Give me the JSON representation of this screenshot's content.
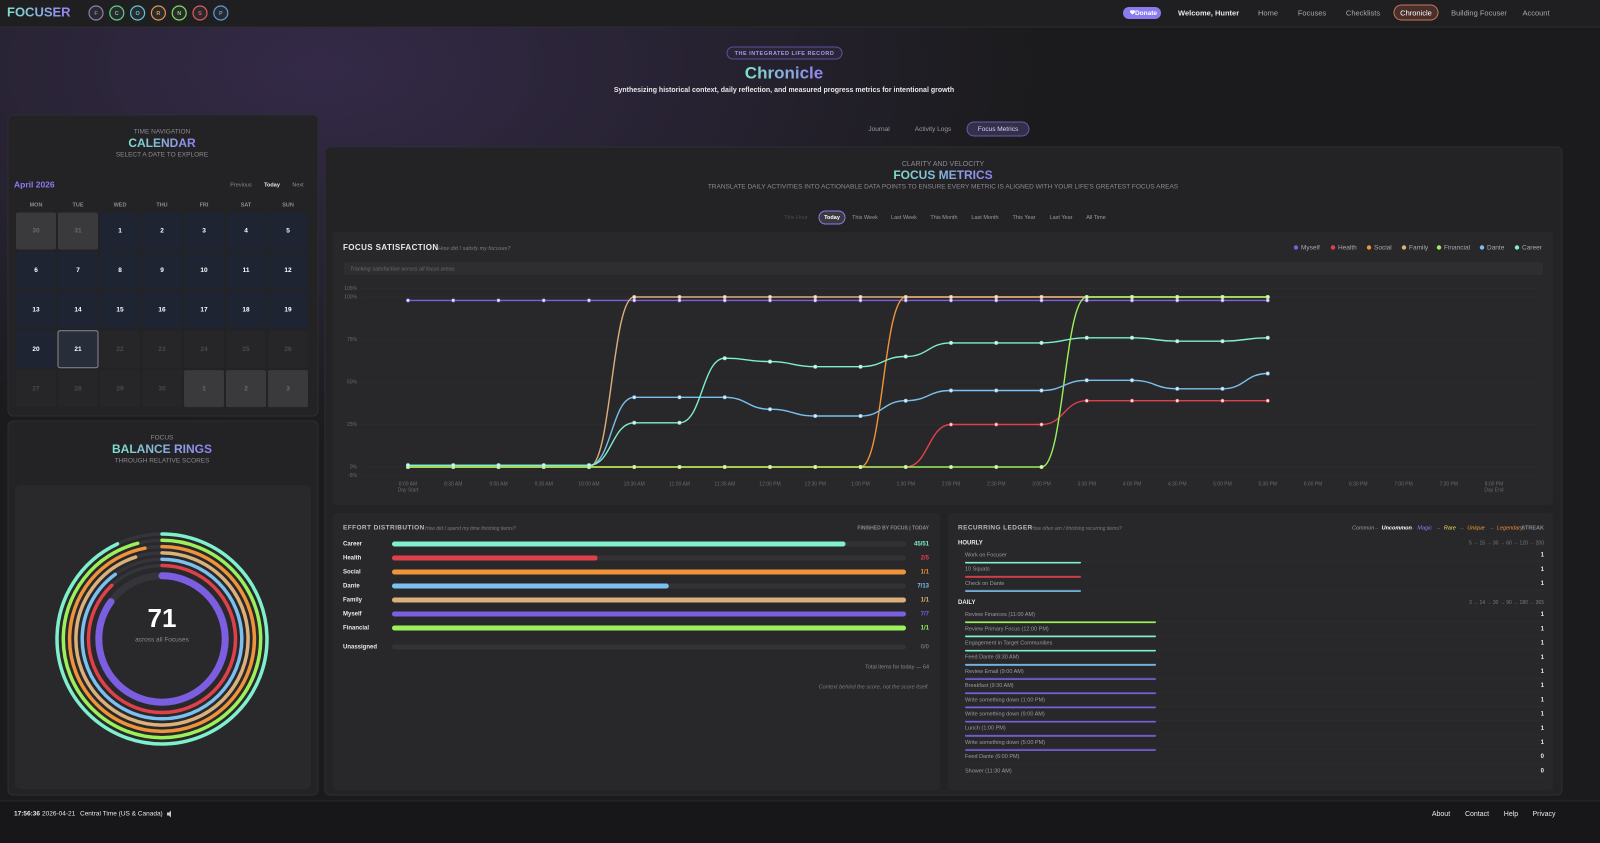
{
  "nav": {
    "brand": "FOCUSER",
    "badges": [
      {
        "letter": "F",
        "color": "#8a7fb0"
      },
      {
        "letter": "C",
        "color": "#5fd08a"
      },
      {
        "letter": "O",
        "color": "#5fc8d8"
      },
      {
        "letter": "R",
        "color": "#e0964a"
      },
      {
        "letter": "N",
        "color": "#7ee05a"
      },
      {
        "letter": "S",
        "color": "#e05a5a"
      },
      {
        "letter": "P",
        "color": "#5a9ae0"
      }
    ],
    "donate": "Donate",
    "welcome": "Welcome, Hunter",
    "links": [
      {
        "label": "Home"
      },
      {
        "label": "Focuses"
      },
      {
        "label": "Checklists"
      },
      {
        "label": "Chronicle",
        "active": true
      },
      {
        "label": "Building Focuser"
      },
      {
        "label": "Account"
      }
    ]
  },
  "hero": {
    "badge": "THE INTEGRATED LIFE RECORD",
    "title": "Chronicle",
    "subtitle": "Synthesizing historical context, daily reflection, and measured progress metrics for intentional growth"
  },
  "tabs": [
    {
      "label": "Journal"
    },
    {
      "label": "Activity Logs"
    },
    {
      "label": "Focus Metrics",
      "active": true
    }
  ],
  "calendar": {
    "kicker": "TIME NAVIGATION",
    "title": "CALENDAR",
    "subtitle": "SELECT A DATE TO EXPLORE",
    "month": "April 2026",
    "previous": "Previous",
    "today": "Today",
    "next": "Next",
    "weekdays": [
      "MON",
      "TUE",
      "WED",
      "THU",
      "FRI",
      "SAT",
      "SUN"
    ],
    "weeks": [
      [
        30,
        31,
        1,
        2,
        3,
        4,
        5
      ],
      [
        6,
        7,
        8,
        9,
        10,
        11,
        12
      ],
      [
        13,
        14,
        15,
        16,
        17,
        18,
        19
      ],
      [
        20,
        21,
        22,
        23,
        24,
        25,
        26
      ],
      [
        27,
        28,
        29,
        30,
        1,
        2,
        3
      ]
    ]
  },
  "rings": {
    "kicker": "FOCUS",
    "title": "BALANCE RINGS",
    "subtitle": "THROUGH RELATIVE SCORES",
    "score": 71,
    "score_label": "across all Focuses",
    "rings": [
      {
        "color": "#7ef0cc",
        "value": 93
      },
      {
        "color": "#9cf05a",
        "value": 96
      },
      {
        "color": "#f0943a",
        "value": 97
      },
      {
        "color": "#dcb07a",
        "value": 95
      },
      {
        "color": "#7cc0f0",
        "value": 90
      },
      {
        "color": "#e0404a",
        "value": 88
      },
      {
        "color": "#7b5fe0",
        "value": 85
      }
    ]
  },
  "metrics": {
    "kicker": "CLARITY AND VELOCITY",
    "title": "FOCUS METRICS",
    "subtitle": "TRANSLATE DAILY ACTIVITIES INTO ACTIONABLE DATA POINTS TO ENSURE EVERY METRIC IS ALIGNED WITH YOUR LIFE'S GREATEST FOCUS AREAS",
    "ranges": [
      {
        "label": "This Hour",
        "disabled": true
      },
      {
        "label": "Today",
        "active": true
      },
      {
        "label": "This Week"
      },
      {
        "label": "Last Week"
      },
      {
        "label": "This Month"
      },
      {
        "label": "Last Month"
      },
      {
        "label": "This Year"
      },
      {
        "label": "Last Year"
      },
      {
        "label": "All Time"
      }
    ]
  },
  "focus_satisfaction": {
    "type": "line",
    "title": "FOCUS SATISFACTION",
    "question": "How did I satisfy my focuses?",
    "hint": "Tracking satisfaction across all focus areas",
    "categories": [
      "8:00 AM",
      "8:30 AM",
      "9:00 AM",
      "9:30 AM",
      "10:00 AM",
      "10:30 AM",
      "11:00 AM",
      "11:30 AM",
      "12:00 PM",
      "12:30 PM",
      "1:00 PM",
      "1:30 PM",
      "2:00 PM",
      "2:30 PM",
      "3:00 PM",
      "3:30 PM",
      "4:00 PM",
      "4:30 PM",
      "5:00 PM",
      "5:30 PM",
      "6:00 PM",
      "6:30 PM",
      "7:00 PM",
      "7:30 PM",
      "8:00 PM"
    ],
    "start_note": "Day Start",
    "end_note": "Day End",
    "ylim": [
      -5,
      105
    ],
    "yticks": [
      {
        "value": -5,
        "label": "-5%"
      },
      {
        "value": 0,
        "label": "0%"
      },
      {
        "value": 25,
        "label": "25%"
      },
      {
        "value": 50,
        "label": "50%"
      },
      {
        "value": 75,
        "label": "75%"
      },
      {
        "value": 100,
        "label": "100%"
      },
      {
        "value": 105,
        "label": "105%"
      }
    ],
    "legend": "top-right",
    "series": [
      {
        "name": "Myself",
        "color": "#7b5fe0",
        "values": [
          98,
          98,
          98,
          98,
          98,
          98,
          98,
          98,
          98,
          98,
          98,
          98,
          98,
          98,
          98,
          98,
          98,
          98,
          98,
          98,
          null,
          null,
          null,
          null,
          null
        ]
      },
      {
        "name": "Health",
        "color": "#e0404a",
        "values": [
          0,
          0,
          0,
          0,
          0,
          0,
          0,
          0,
          0,
          0,
          0,
          0,
          25,
          25,
          25,
          39,
          39,
          39,
          39,
          39,
          null,
          null,
          null,
          null,
          null
        ]
      },
      {
        "name": "Social",
        "color": "#f0943a",
        "values": [
          0,
          0,
          0,
          0,
          0,
          0,
          0,
          0,
          0,
          0,
          0,
          100,
          100,
          100,
          100,
          100,
          100,
          100,
          100,
          100,
          null,
          null,
          null,
          null,
          null
        ]
      },
      {
        "name": "Family",
        "color": "#dcb07a",
        "values": [
          0,
          0,
          0,
          0,
          0,
          100,
          100,
          100,
          100,
          100,
          100,
          100,
          100,
          100,
          100,
          100,
          100,
          100,
          100,
          100,
          null,
          null,
          null,
          null,
          null
        ]
      },
      {
        "name": "Financial",
        "color": "#9cf05a",
        "values": [
          0,
          0,
          0,
          0,
          0,
          0,
          0,
          0,
          0,
          0,
          0,
          0,
          0,
          0,
          0,
          100,
          100,
          100,
          100,
          100,
          null,
          null,
          null,
          null,
          null
        ]
      },
      {
        "name": "Dante",
        "color": "#7cc0f0",
        "values": [
          1,
          1,
          1,
          1,
          1,
          41,
          41,
          41,
          34,
          30,
          30,
          39,
          45,
          45,
          45,
          51,
          51,
          46,
          46,
          55,
          null,
          null,
          null,
          null,
          null
        ]
      },
      {
        "name": "Career",
        "color": "#7ef0cc",
        "values": [
          1,
          1,
          1,
          1,
          1,
          26,
          26,
          64,
          62,
          59,
          59,
          65,
          73,
          73,
          73,
          76,
          76,
          74,
          74,
          76,
          null,
          null,
          null,
          null,
          null
        ]
      }
    ]
  },
  "effort": {
    "title": "EFFORT DISTRIBUTION",
    "question": "How did I spend my time finishing items?",
    "right": "FINISHED BY FOCUS | TODAY",
    "rows": [
      {
        "name": "Career",
        "color": "#7ef0cc",
        "done": 45,
        "total": 51,
        "label": "45/51"
      },
      {
        "name": "Health",
        "color": "#e0404a",
        "done": 2,
        "total": 5,
        "label": "2/5"
      },
      {
        "name": "Social",
        "color": "#f0943a",
        "done": 1,
        "total": 1,
        "label": "1/1"
      },
      {
        "name": "Dante",
        "color": "#7cc0f0",
        "done": 7,
        "total": 13,
        "label": "7/13"
      },
      {
        "name": "Family",
        "color": "#dcb07a",
        "done": 1,
        "total": 1,
        "label": "1/1"
      },
      {
        "name": "Myself",
        "color": "#7b5fe0",
        "done": 7,
        "total": 7,
        "label": "7/7"
      },
      {
        "name": "Financial",
        "color": "#9cf05a",
        "done": 1,
        "total": 1,
        "label": "1/1"
      }
    ],
    "unassigned": {
      "name": "Unassigned",
      "done": 0,
      "total": 0,
      "label": "0/0"
    },
    "total": "Total items for today — 64",
    "note": "Context behind the score, not the score itself."
  },
  "ledger": {
    "title": "RECURRING LEDGER",
    "question": "How often am I finishing recurring items?",
    "tiers": [
      {
        "name": "Common",
        "color": "#9a9a9a"
      },
      {
        "name": "Uncommon",
        "color": "#ffffff"
      },
      {
        "name": "Magic",
        "color": "#8a7cff"
      },
      {
        "name": "Rare",
        "color": "#f0e05a"
      },
      {
        "name": "Unique",
        "color": "#f0a03a"
      },
      {
        "name": "Legendary",
        "color": "#f08a2a"
      }
    ],
    "separator": "→",
    "streak": "STREAK",
    "groups": [
      {
        "name": "HOURLY",
        "thresholds": "5 → 15 → 30 → 60 → 120 → 200",
        "items": [
          {
            "name": "Work on Focuser",
            "color": "#7ef0cc",
            "streak": 1
          },
          {
            "name": "10 Squats",
            "color": "#e0404a",
            "streak": 1
          },
          {
            "name": "Check on Dante",
            "color": "#7cc0f0",
            "streak": 1
          }
        ]
      },
      {
        "name": "DAILY",
        "thresholds": "3 → 14 → 30 → 90 → 180 → 365",
        "items": [
          {
            "name": "Review Finances (11:00 AM)",
            "color": "#9cf05a",
            "streak": 1
          },
          {
            "name": "Review Primary Focus (12:00 PM)",
            "color": "#7ef0cc",
            "streak": 1
          },
          {
            "name": "Engagement in Target Communities",
            "color": "#7ef0cc",
            "streak": 1
          },
          {
            "name": "Feed Dante (8:30 AM)",
            "color": "#7cc0f0",
            "streak": 1
          },
          {
            "name": "Review Email (9:00 AM)",
            "color": "#7b5fe0",
            "streak": 1
          },
          {
            "name": "Breakfast (9:30 AM)",
            "color": "#7b5fe0",
            "streak": 1
          },
          {
            "name": "Write something down (1:00 PM)",
            "color": "#7b5fe0",
            "streak": 1
          },
          {
            "name": "Write something down (9:00 AM)",
            "color": "#7b5fe0",
            "streak": 1
          },
          {
            "name": "Lunch (1:00 PM)",
            "color": "#7b5fe0",
            "streak": 1
          },
          {
            "name": "Write something down (5:00 PM)",
            "color": "#7b5fe0",
            "streak": 1
          },
          {
            "name": "Feed Dante (6:00 PM)",
            "streak": 0
          },
          {
            "name": "Shower (11:30 AM)",
            "streak": 0
          }
        ]
      }
    ]
  },
  "footer": {
    "time": "17:56:36",
    "date": "2026-04-21",
    "zone": "Central Time (US & Canada)",
    "links": [
      "About",
      "Contact",
      "Help",
      "Privacy"
    ]
  }
}
